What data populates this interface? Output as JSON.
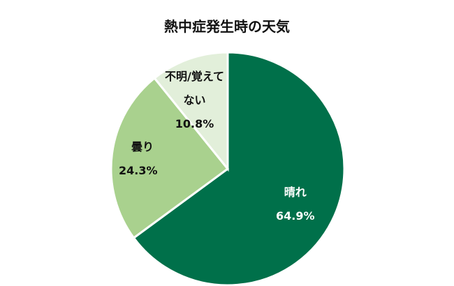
{
  "chart_data": {
    "type": "pie",
    "title": "熱中症発生時の天気",
    "start": "top",
    "direction": "clockwise",
    "slices": [
      {
        "label": "晴れ",
        "value": 64.9,
        "value_label": "64.9%",
        "color": "#00704a",
        "text_color": "#ffffff"
      },
      {
        "label": "曇り",
        "value": 24.3,
        "value_label": "24.3%",
        "color": "#a9d18e",
        "text_color": "#111111"
      },
      {
        "label": "不明/覚えてない",
        "label_lines": [
          "不明/覚えて",
          "ない"
        ],
        "value": 10.8,
        "value_label": "10.8%",
        "color": "#e2efda",
        "text_color": "#111111"
      }
    ]
  }
}
